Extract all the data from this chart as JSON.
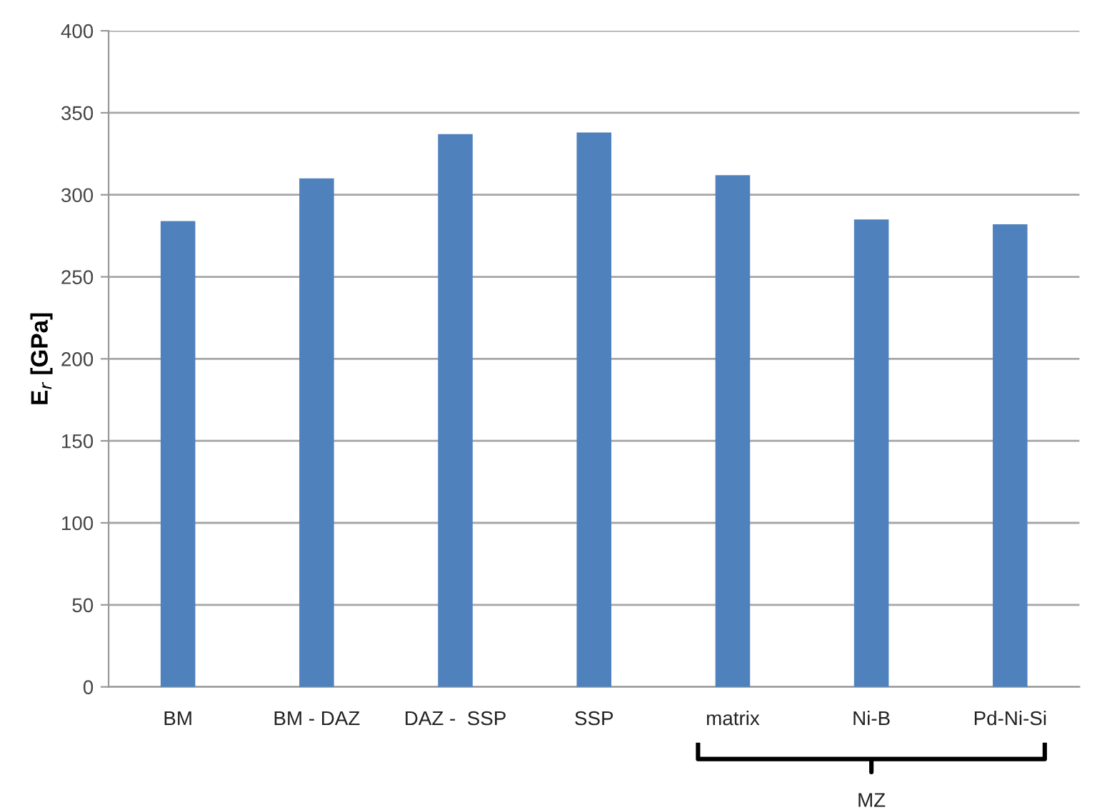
{
  "chart_data": {
    "type": "bar",
    "categories": [
      "BM",
      "BM - DAZ",
      "DAZ -  SSP",
      "SSP",
      "matrix",
      "Ni-B",
      "Pd-Ni-Si"
    ],
    "values": [
      284,
      310,
      337,
      338,
      312,
      285,
      282
    ],
    "color": "#4f81bd",
    "ylabel": "E$_{r}$ [GPa]",
    "ylim": [
      0,
      400
    ],
    "yticks": [
      0,
      50,
      100,
      150,
      200,
      250,
      300,
      350,
      400
    ],
    "grid": "y",
    "annotations": [
      "MZ"
    ]
  }
}
